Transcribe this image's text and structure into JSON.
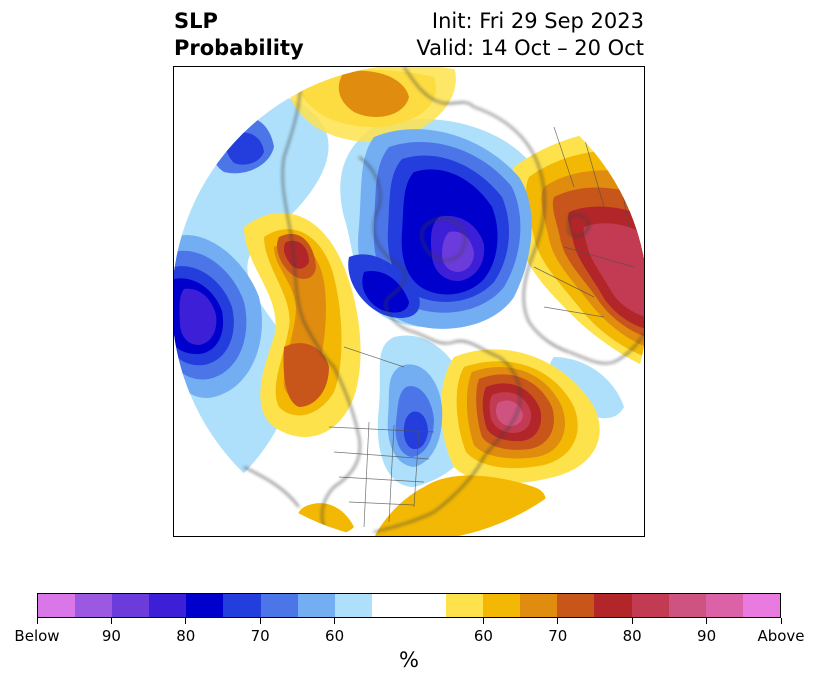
{
  "title": {
    "left_line1": "SLP",
    "left_line2": "Probability",
    "right_line1": "Init: Fri 29 Sep 2023",
    "right_line2": "Valid: 14 Oct – 20 Oct"
  },
  "map": {
    "projection": "north-polar-stereographic",
    "anomalies": [
      {
        "region": "Europe / western Russia",
        "category": "Above",
        "peak_percent": 85
      },
      {
        "region": "Northeast Pacific / Gulf of Alaska",
        "category": "Above",
        "peak_percent": 80
      },
      {
        "region": "Western North Atlantic off Canada",
        "category": "Above",
        "peak_percent": 90
      },
      {
        "region": "Arctic Ocean / Siberian Arctic",
        "category": "Below",
        "peak_percent": 85
      },
      {
        "region": "North Pacific near Kamchatka",
        "category": "Below",
        "peak_percent": 85
      },
      {
        "region": "Central North America / Great Lakes",
        "category": "Below",
        "peak_percent": 75
      }
    ]
  },
  "colorbar": {
    "colors": [
      "#d977e8",
      "#9b58e0",
      "#6c3bdc",
      "#3c1fd6",
      "#0000cc",
      "#233edc",
      "#4c76e8",
      "#73aef2",
      "#aee0fb",
      "#ffffff",
      "#ffffff",
      "#fee24c",
      "#f3b804",
      "#e08c0e",
      "#c8561a",
      "#b2262a",
      "#c23b52",
      "#cf5380",
      "#dc62a8",
      "#e87ae0"
    ],
    "tick_labels": [
      "Below",
      "90",
      "80",
      "70",
      "60",
      "60",
      "70",
      "80",
      "90",
      "Above"
    ],
    "unit": "%"
  }
}
